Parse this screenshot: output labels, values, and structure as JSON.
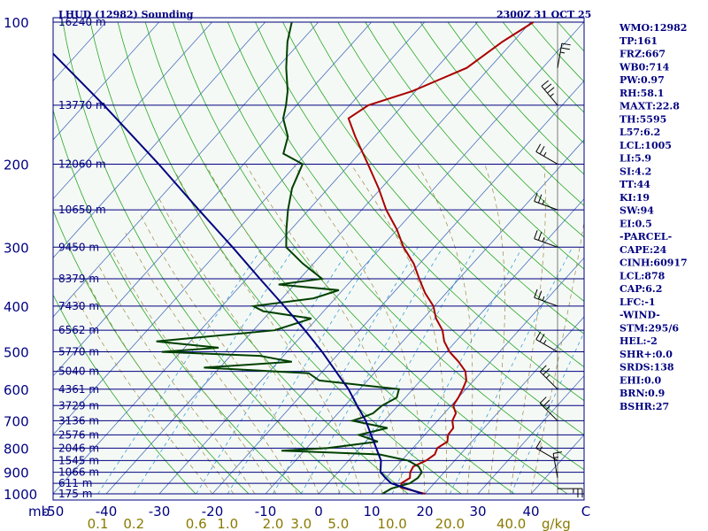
{
  "header": {
    "title": "LHUD (12982) Sounding",
    "datetime": "2300Z 31 OCT 25"
  },
  "indices": [
    "WMO:12982",
    "TP:161",
    "FRZ:667",
    "WB0:714",
    "PW:0.97",
    "RH:58.1",
    "MAXT:22.8",
    "TH:5595",
    "L57:6.2",
    "LCL:1005",
    "LI:5.9",
    "SI:4.2",
    "TT:44",
    "KI:19",
    "SW:94",
    "EI:0.5",
    "-PARCEL-",
    "CAPE:24",
    "CINH:60917",
    "LCL:878",
    "CAP:6.2",
    "LFC:-1",
    "-WIND-",
    "STM:295/6",
    "HEL:-2",
    "SHR+:0.0",
    "SRDS:138",
    "EHI:0.0",
    "BRN:0.9",
    "BSHR:27"
  ],
  "chart_data": {
    "type": "line",
    "title": "LHUD (12982) Sounding",
    "subtitle": "2300Z 31 OCT 25",
    "xlabel": "C",
    "ylabel": "mb",
    "x_unit_label": "C",
    "y_unit_label": "mb",
    "mixing_ratio_unit": "g/kg",
    "y_scale": "log",
    "ylim": [
      1000,
      100
    ],
    "xlim_surface": [
      -50,
      50
    ],
    "pressure_ticks": [
      100,
      200,
      300,
      400,
      500,
      600,
      700,
      800,
      900,
      1000
    ],
    "pressure_tick_labels": [
      "100",
      "200",
      "300",
      "400",
      "500",
      "600",
      "700",
      "800",
      "900",
      "1000"
    ],
    "temperature_ticks": [
      -50,
      -40,
      -30,
      -20,
      -10,
      0,
      10,
      20,
      30,
      40
    ],
    "temperature_tick_labels": [
      "-50",
      "-40",
      "-30",
      "-20",
      "-10",
      "0",
      "10",
      "20",
      "30",
      "40"
    ],
    "mixing_ratio_ticks": [
      0.1,
      0.2,
      0.6,
      1.0,
      2.0,
      3.0,
      5.0,
      10.0,
      20.0,
      40.0
    ],
    "mixing_ratio_tick_labels": [
      "0.1",
      "0.2",
      "0.6",
      "1.0",
      "2.0",
      "3.0",
      "5.0",
      "10.0",
      "20.0",
      "40.0"
    ],
    "height_levels": [
      {
        "p": 100,
        "label": "16240 m"
      },
      {
        "p": 150,
        "label": "13770 m"
      },
      {
        "p": 200,
        "label": "12060 m"
      },
      {
        "p": 250,
        "label": "10650 m"
      },
      {
        "p": 300,
        "label": "9450 m"
      },
      {
        "p": 350,
        "label": "8379 m"
      },
      {
        "p": 400,
        "label": "7430 m"
      },
      {
        "p": 450,
        "label": "6562 m"
      },
      {
        "p": 500,
        "label": "5770 m"
      },
      {
        "p": 550,
        "label": "5040 m"
      },
      {
        "p": 600,
        "label": "4361 m"
      },
      {
        "p": 650,
        "label": "3729 m"
      },
      {
        "p": 700,
        "label": "3136 m"
      },
      {
        "p": 750,
        "label": "2576 m"
      },
      {
        "p": 800,
        "label": "2046 m"
      },
      {
        "p": 850,
        "label": "1545 m"
      },
      {
        "p": 900,
        "label": "1066 m"
      },
      {
        "p": 950,
        "label": "611 m"
      },
      {
        "p": 1000,
        "label": "175 m"
      }
    ],
    "series": [
      {
        "color": "#aa0000",
        "points": [
          [
            1000,
            20
          ],
          [
            970,
            14.5
          ],
          [
            950,
            13.8
          ],
          [
            925,
            14.5
          ],
          [
            900,
            13.6
          ],
          [
            875,
            13.2
          ],
          [
            850,
            14.6
          ],
          [
            825,
            15.2
          ],
          [
            800,
            14.6
          ],
          [
            775,
            15.4
          ],
          [
            750,
            14.4
          ],
          [
            725,
            14.2
          ],
          [
            700,
            12.8
          ],
          [
            675,
            12.2
          ],
          [
            650,
            10.4
          ],
          [
            625,
            10.0
          ],
          [
            600,
            9.4
          ],
          [
            575,
            8.6
          ],
          [
            550,
            6.9
          ],
          [
            525,
            4.0
          ],
          [
            500,
            0.6
          ],
          [
            475,
            -2.2
          ],
          [
            450,
            -4.4
          ],
          [
            425,
            -7.6
          ],
          [
            400,
            -10.2
          ],
          [
            375,
            -14.0
          ],
          [
            350,
            -17.5
          ],
          [
            325,
            -21.1
          ],
          [
            300,
            -25.8
          ],
          [
            275,
            -30.1
          ],
          [
            250,
            -35.4
          ],
          [
            225,
            -40.5
          ],
          [
            200,
            -46.6
          ],
          [
            175,
            -53.6
          ],
          [
            160,
            -58.0
          ],
          [
            150,
            -56.5
          ],
          [
            140,
            -50.6
          ],
          [
            125,
            -44.3
          ],
          [
            110,
            -42.0
          ],
          [
            100,
            -39.5
          ]
        ]
      },
      {
        "color": "#004000",
        "points": [
          [
            1000,
            12.0
          ],
          [
            975,
            12.8
          ],
          [
            950,
            15.4
          ],
          [
            925,
            16.0
          ],
          [
            900,
            15.8
          ],
          [
            875,
            14.2
          ],
          [
            850,
            11.2
          ],
          [
            825,
            4.8
          ],
          [
            810,
            -14.3
          ],
          [
            800,
            -6.0
          ],
          [
            775,
            2.3
          ],
          [
            750,
            -2.4
          ],
          [
            725,
            1.8
          ],
          [
            700,
            -6.0
          ],
          [
            690,
            -4.8
          ],
          [
            675,
            -3.4
          ],
          [
            650,
            -3.0
          ],
          [
            625,
            -1.6
          ],
          [
            600,
            -2.6
          ],
          [
            575,
            -19.1
          ],
          [
            555,
            -22.3
          ],
          [
            540,
            -43.0
          ],
          [
            525,
            -27.4
          ],
          [
            510,
            -34.4
          ],
          [
            500,
            -53.6
          ],
          [
            490,
            -43.6
          ],
          [
            475,
            -56.4
          ],
          [
            450,
            -36.0
          ],
          [
            425,
            -31.1
          ],
          [
            410,
            -41.4
          ],
          [
            400,
            -44.1
          ],
          [
            385,
            -34.1
          ],
          [
            370,
            -30.7
          ],
          [
            360,
            -43.0
          ],
          [
            350,
            -35.8
          ],
          [
            325,
            -42.0
          ],
          [
            300,
            -47.9
          ],
          [
            275,
            -50.9
          ],
          [
            250,
            -53.9
          ],
          [
            225,
            -56.8
          ],
          [
            200,
            -58.9
          ],
          [
            190,
            -64.3
          ],
          [
            175,
            -66.3
          ],
          [
            160,
            -70.3
          ],
          [
            150,
            -72.0
          ],
          [
            140,
            -74.1
          ],
          [
            125,
            -78.3
          ],
          [
            110,
            -82.5
          ],
          [
            100,
            -85.0
          ]
        ]
      },
      {
        "color": "#000080",
        "points": [
          [
            1000,
            19.6
          ],
          [
            950,
            11.9
          ],
          [
            925,
            9.9
          ],
          [
            900,
            8.0
          ],
          [
            850,
            6.1
          ],
          [
            800,
            3.1
          ],
          [
            750,
            -0.1
          ],
          [
            700,
            -3.5
          ],
          [
            650,
            -7.7
          ],
          [
            600,
            -12.1
          ],
          [
            550,
            -17.5
          ],
          [
            500,
            -23.4
          ],
          [
            450,
            -30.3
          ],
          [
            400,
            -38.3
          ],
          [
            350,
            -47.5
          ],
          [
            300,
            -58.0
          ],
          [
            250,
            -70.7
          ],
          [
            200,
            -86.0
          ],
          [
            150,
            -106.3
          ],
          [
            100,
            -135.8
          ]
        ]
      }
    ],
    "wind_barbs": [
      {
        "p": 975,
        "dir": 90,
        "spd": 15
      },
      {
        "p": 925,
        "dir": 350,
        "spd": 5
      },
      {
        "p": 850,
        "dir": 300,
        "spd": 5
      },
      {
        "p": 700,
        "dir": 315,
        "spd": 15
      },
      {
        "p": 600,
        "dir": 315,
        "spd": 15
      },
      {
        "p": 500,
        "dir": 300,
        "spd": 15
      },
      {
        "p": 400,
        "dir": 290,
        "spd": 15
      },
      {
        "p": 300,
        "dir": 290,
        "spd": 15
      },
      {
        "p": 250,
        "dir": 290,
        "spd": 15
      },
      {
        "p": 200,
        "dir": 300,
        "spd": 15
      },
      {
        "p": 150,
        "dir": 320,
        "spd": 25
      },
      {
        "p": 125,
        "dir": 10,
        "spd": 15
      }
    ],
    "grid": true
  }
}
